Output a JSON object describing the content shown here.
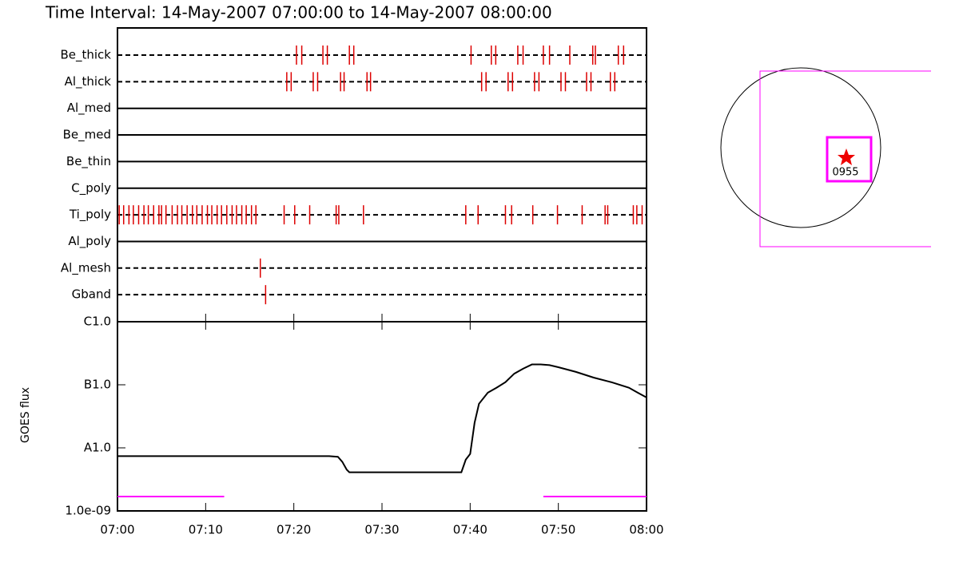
{
  "chart_data": [
    {
      "type": "timeline",
      "title": "Time Interval: 14-May-2007 07:00:00 to 14-May-2007 08:00:00",
      "xlim": [
        0,
        60
      ],
      "color": "#dd0000",
      "rows": [
        {
          "name": "Be_thick",
          "line": "dashed",
          "x": [
            20.3,
            20.9,
            23.3,
            23.8,
            26.3,
            26.8,
            40.1,
            42.4,
            42.9,
            45.4,
            46.0,
            48.3,
            49.0,
            51.3,
            53.9,
            54.2,
            56.8,
            57.4
          ]
        },
        {
          "name": "Al_thick",
          "line": "dashed",
          "x": [
            19.2,
            19.7,
            22.2,
            22.7,
            25.3,
            25.7,
            28.3,
            28.7,
            41.3,
            41.8,
            44.3,
            44.8,
            47.3,
            47.8,
            50.3,
            50.8,
            53.2,
            53.7,
            55.9,
            56.4
          ]
        },
        {
          "name": "Al_med",
          "line": "solid",
          "x": []
        },
        {
          "name": "Be_med",
          "line": "solid",
          "x": []
        },
        {
          "name": "Be_thin",
          "line": "solid",
          "x": []
        },
        {
          "name": "C_poly",
          "line": "solid",
          "x": []
        },
        {
          "name": "Ti_poly",
          "line": "dashed",
          "x": [
            0.2,
            0.7,
            1.3,
            1.8,
            2.4,
            3.0,
            3.5,
            4.1,
            4.7,
            5.0,
            5.5,
            6.2,
            6.8,
            7.3,
            7.9,
            8.5,
            9.0,
            9.6,
            10.2,
            10.7,
            11.3,
            11.8,
            12.4,
            13.0,
            13.5,
            14.1,
            14.6,
            15.2,
            15.7,
            18.9,
            20.1,
            21.8,
            24.8,
            25.1,
            27.9,
            39.5,
            40.9,
            44.0,
            44.7,
            47.1,
            49.9,
            52.7,
            55.3,
            55.6,
            58.5,
            58.9,
            59.5
          ]
        },
        {
          "name": "Al_poly",
          "line": "solid",
          "x": []
        },
        {
          "name": "Al_mesh",
          "line": "dashed",
          "x": [
            16.2
          ]
        },
        {
          "name": "Gband",
          "line": "dashed",
          "x": [
            16.8
          ]
        }
      ]
    },
    {
      "type": "line",
      "ylabel": "GOES flux",
      "log_y": true,
      "xlim": [
        0,
        60
      ],
      "xticks": [
        {
          "value": 0,
          "label": "07:00"
        },
        {
          "value": 10,
          "label": "07:10"
        },
        {
          "value": 20,
          "label": "07:20"
        },
        {
          "value": 30,
          "label": "07:30"
        },
        {
          "value": 40,
          "label": "07:40"
        },
        {
          "value": 50,
          "label": "07:50"
        },
        {
          "value": 60,
          "label": "08:00"
        }
      ],
      "ylim": [
        1e-09,
        1e-06
      ],
      "yticks": [
        {
          "value": 1e-09,
          "label": "1.0e-09"
        },
        {
          "value": 1e-08,
          "label": "A1.0"
        },
        {
          "value": 1e-07,
          "label": "B1.0"
        },
        {
          "value": 1e-06,
          "label": "C1.0"
        }
      ],
      "series": [
        {
          "color": "#000000",
          "x": [
            0,
            5,
            10,
            14,
            16,
            20,
            24,
            25,
            25.5,
            26,
            26.3,
            28,
            30,
            35,
            39,
            39.5,
            40,
            40.5,
            41,
            42,
            43,
            44,
            45,
            46,
            47,
            48,
            49,
            50,
            52,
            54,
            56,
            58,
            59,
            60
          ],
          "values": [
            7.4e-09,
            7.4e-09,
            7.4e-09,
            7.4e-09,
            7.4e-09,
            7.4e-09,
            7.4e-09,
            7.2e-09,
            6e-09,
            4.5e-09,
            4.1e-09,
            4.1e-09,
            4.1e-09,
            4.1e-09,
            4.1e-09,
            6.5e-09,
            8e-09,
            2.5e-08,
            5e-08,
            7.5e-08,
            9e-08,
            1.1e-07,
            1.5e-07,
            1.8e-07,
            2.1e-07,
            2.1e-07,
            2.05e-07,
            1.9e-07,
            1.6e-07,
            1.3e-07,
            1.1e-07,
            9e-08,
            7.5e-08,
            6.3e-08
          ]
        }
      ],
      "intervals": {
        "color": "#ff00ff",
        "x": [
          [
            0,
            12.1
          ],
          [
            48.3,
            60
          ]
        ]
      }
    }
  ],
  "pointing_label": "0955"
}
